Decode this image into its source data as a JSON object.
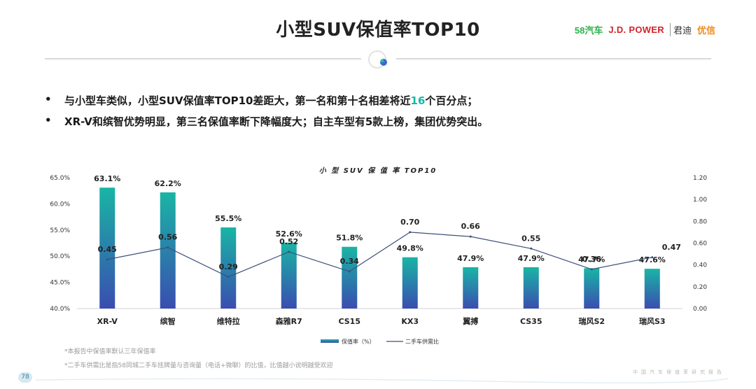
{
  "header": {
    "title": "小型SUV保值率TOP10",
    "logos": {
      "l58": "58汽车",
      "jdpower": "J.D. POWER",
      "jd_cn": "君迪",
      "youxin": "优信"
    }
  },
  "bullets": [
    {
      "dot": "•",
      "pre": "与小型车类似，小型SUV保值率TOP10差距大，第一名和第十名相差将近",
      "highlight": "16",
      "post": "个百分点；"
    },
    {
      "dot": "•",
      "pre": "XR-V和缤智优势明显，第三名保值率断下降幅度大；自主车型有5款上榜，集团优势突出。",
      "highlight": "",
      "post": ""
    }
  ],
  "footnotes": {
    "note1": "*本报告中保值率默认三年保值率",
    "note2": "*二手车供需比是指58同城二手车挂牌量与咨询量（电话+微聊）的比值，比值越小说明越受欢迎",
    "page": "78",
    "bottom_right": "中国汽车保值率研究报告"
  },
  "colors": {
    "bar_top": "#19b5a5",
    "bar_bottom": "#3a4db0",
    "line": "#3d4f7a",
    "highlight": "#14b8a6"
  },
  "chart_data": {
    "type": "bar",
    "title": "小 型 SUV 保 值 率 TOP10",
    "categories": [
      "XR-V",
      "缤智",
      "维特拉",
      "森雅R7",
      "CS15",
      "KX3",
      "翼搏",
      "CS35",
      "瑞风S2",
      "瑞风S3"
    ],
    "series": [
      {
        "name": "保值率（%）",
        "type": "bar",
        "axis": "left",
        "values": [
          63.1,
          62.2,
          55.5,
          52.6,
          51.8,
          49.8,
          47.9,
          47.9,
          47.7,
          47.6
        ],
        "labels": [
          "63.1%",
          "62.2%",
          "55.5%",
          "52.6%",
          "51.8%",
          "49.8%",
          "47.9%",
          "47.9%",
          "47.7%",
          "47.6%"
        ]
      },
      {
        "name": "二手车供需比",
        "type": "line",
        "axis": "right",
        "values": [
          0.45,
          0.56,
          0.29,
          0.52,
          0.34,
          0.7,
          0.66,
          0.55,
          0.36,
          0.47
        ],
        "labels": [
          "0.45",
          "0.56",
          "0.29",
          "0.52",
          "0.34",
          "0.70",
          "0.66",
          "0.55",
          "0.36",
          "0.47"
        ]
      }
    ],
    "ylim_left": [
      40,
      65
    ],
    "yticks_left": [
      "40.0%",
      "45.0%",
      "50.0%",
      "55.0%",
      "60.0%",
      "65.0%"
    ],
    "ylim_right": [
      0,
      1.2
    ],
    "yticks_right": [
      "0.00",
      "0.20",
      "0.40",
      "0.60",
      "0.80",
      "1.00",
      "1.20"
    ],
    "legend_position": "bottom",
    "grid": false
  }
}
